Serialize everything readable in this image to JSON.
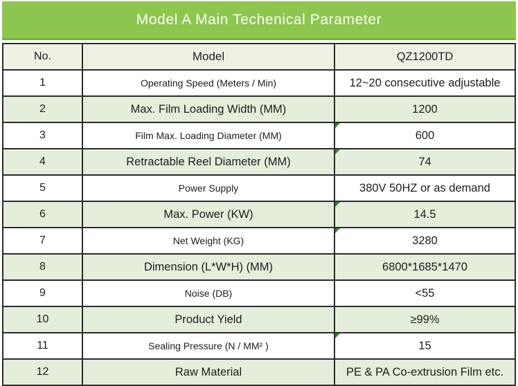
{
  "title": "Model A Main Techenical Parameter",
  "colors": {
    "title-green": "#8DC64F",
    "title-underline": "#7AAF3F",
    "header-fill": "#EDF2E5",
    "row-green": "#E4EEDB",
    "border-dark": "#2B2B2B",
    "underline-green": "#8CC152",
    "marker-green": "#2E8B2E",
    "text-dark": "#1D1D1D",
    "title-text": "#FCFFF6"
  },
  "table": {
    "header": {
      "no": "No.",
      "model": "Model",
      "value": "QZ1200TD"
    },
    "rows": [
      {
        "no": "1",
        "model": "Operating Speed (Meters / Min)",
        "value": "12~20 consecutive adjustable",
        "marker": false
      },
      {
        "no": "2",
        "model": "Max. Film Loading Width (MM)",
        "value": "1200",
        "marker": false
      },
      {
        "no": "3",
        "model": "Film Max. Loading Diameter (MM)",
        "value": "600",
        "marker": true
      },
      {
        "no": "4",
        "model": "Retractable Reel Diameter (MM)",
        "value": "74",
        "marker": true
      },
      {
        "no": "5",
        "model": "Power Supply",
        "value": "380V 50HZ or as demand",
        "marker": false
      },
      {
        "no": "6",
        "model": "Max. Power (KW)",
        "value": "14.5",
        "marker": true
      },
      {
        "no": "7",
        "model": "Net Weight (KG)",
        "value": "3280",
        "marker": true
      },
      {
        "no": "8",
        "model": "Dimension (L*W*H) (MM)",
        "value": "6800*1685*1470",
        "marker": false
      },
      {
        "no": "9",
        "model": "Noise (DB)",
        "value": "<55",
        "marker": false
      },
      {
        "no": "10",
        "model": "Product Yield",
        "value": "≥99%",
        "marker": false
      },
      {
        "no": "11",
        "model": "Sealing Pressure (N / MM² )",
        "value": "15",
        "marker": true
      },
      {
        "no": "12",
        "model": "Raw Material",
        "value": "PE & PA Co-extrusion Film etc.",
        "marker": false
      }
    ]
  }
}
